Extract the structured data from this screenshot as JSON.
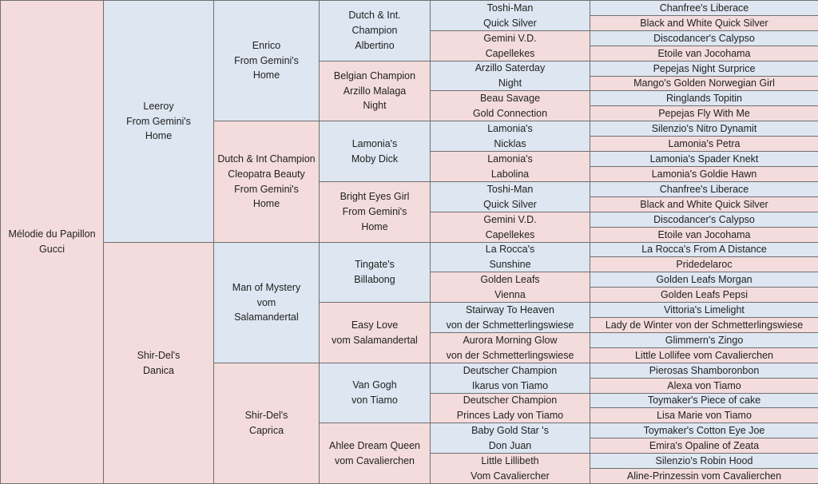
{
  "subject": {
    "lines": [
      "Mélodie du Papillon",
      "Gucci"
    ]
  },
  "generations": [
    [
      {
        "lines": [
          "Leeroy",
          "From Gemini's",
          "Home"
        ]
      },
      {
        "lines": [
          "Shir-Del's",
          "Danica"
        ]
      }
    ],
    [
      {
        "lines": [
          "Enrico",
          "From Gemini's",
          "Home"
        ]
      },
      {
        "lines": [
          "Dutch & Int Champion",
          "Cleopatra Beauty",
          "From Gemini's",
          "Home"
        ]
      },
      {
        "lines": [
          "Man of Mystery",
          "vom",
          "Salamandertal"
        ]
      },
      {
        "lines": [
          "Shir-Del's",
          "Caprica"
        ]
      }
    ],
    [
      {
        "lines": [
          "Dutch & Int.",
          "Champion",
          "Albertino"
        ]
      },
      {
        "lines": [
          "Belgian Champion",
          "Arzillo Malaga",
          "Night"
        ]
      },
      {
        "lines": [
          "Lamonia's",
          "Moby Dick"
        ]
      },
      {
        "lines": [
          "Bright Eyes Girl",
          "From Gemini's",
          "Home"
        ]
      },
      {
        "lines": [
          "Tingate's",
          "Billabong"
        ]
      },
      {
        "lines": [
          "Easy Love",
          "vom Salamandertal"
        ]
      },
      {
        "lines": [
          "Van Gogh",
          "von Tiamo"
        ]
      },
      {
        "lines": [
          "Ahlee Dream Queen",
          "vom Cavalierchen"
        ]
      }
    ],
    [
      {
        "lines": [
          "Toshi-Man",
          "Quick Silver"
        ]
      },
      {
        "lines": [
          "Gemini V.D.",
          "Capellekes"
        ]
      },
      {
        "lines": [
          "Arzillo Saterday",
          "Night"
        ]
      },
      {
        "lines": [
          "Beau Savage",
          "Gold Connection"
        ]
      },
      {
        "lines": [
          "Lamonia's",
          "Nicklas"
        ]
      },
      {
        "lines": [
          "Lamonia's",
          "Labolina"
        ]
      },
      {
        "lines": [
          "Toshi-Man",
          "Quick Silver"
        ]
      },
      {
        "lines": [
          "Gemini V.D.",
          "Capellekes"
        ]
      },
      {
        "lines": [
          "La Rocca's",
          "Sunshine"
        ]
      },
      {
        "lines": [
          "Golden Leafs",
          "Vienna"
        ]
      },
      {
        "lines": [
          "Stairway To Heaven",
          "von der Schmetterlingswiese"
        ]
      },
      {
        "lines": [
          "Aurora Morning Glow",
          "von der Schmetterlingswiese"
        ]
      },
      {
        "lines": [
          "Deutscher Champion",
          "Ikarus von Tiamo"
        ]
      },
      {
        "lines": [
          "Deutscher Champion",
          "Princes Lady von Tiamo"
        ]
      },
      {
        "lines": [
          "Baby Gold Star 's",
          "Don Juan"
        ]
      },
      {
        "lines": [
          "Little Lillibeth",
          "Vom Cavaliercher"
        ]
      }
    ],
    [
      {
        "lines": [
          "Chanfree's Liberace"
        ]
      },
      {
        "lines": [
          "Black and White Quick Silver"
        ]
      },
      {
        "lines": [
          "Discodancer's Calypso"
        ]
      },
      {
        "lines": [
          "Etoile van Jocohama"
        ]
      },
      {
        "lines": [
          "Pepejas Night Surprice"
        ]
      },
      {
        "lines": [
          "Mango's Golden Norwegian Girl"
        ]
      },
      {
        "lines": [
          "Ringlands Topitin"
        ]
      },
      {
        "lines": [
          "Pepejas Fly With Me"
        ]
      },
      {
        "lines": [
          "Silenzio's Nitro Dynamit"
        ]
      },
      {
        "lines": [
          "Lamonia's Petra"
        ]
      },
      {
        "lines": [
          "Lamonia's Spader Knekt"
        ]
      },
      {
        "lines": [
          "Lamonia's Goldie Hawn"
        ]
      },
      {
        "lines": [
          "Chanfree's Liberace"
        ]
      },
      {
        "lines": [
          "Black and White Quick Silver"
        ]
      },
      {
        "lines": [
          "Discodancer's Calypso"
        ]
      },
      {
        "lines": [
          "Etoile van Jocohama"
        ]
      },
      {
        "lines": [
          "La Rocca's From A Distance"
        ]
      },
      {
        "lines": [
          "Pridedelaroc"
        ]
      },
      {
        "lines": [
          "Golden Leafs Morgan"
        ]
      },
      {
        "lines": [
          "Golden Leafs Pepsi"
        ]
      },
      {
        "lines": [
          "Vittoria's Limelight"
        ]
      },
      {
        "lines": [
          "Lady de Winter von der Schmetterlingswiese"
        ]
      },
      {
        "lines": [
          "Glimmern's Zingo"
        ]
      },
      {
        "lines": [
          "Little Lollifee vom Cavalierchen"
        ]
      },
      {
        "lines": [
          "Pierosas Shamboronbon"
        ]
      },
      {
        "lines": [
          "Alexa von Tiamo"
        ]
      },
      {
        "lines": [
          "Toymaker's Piece of cake"
        ]
      },
      {
        "lines": [
          "Lisa Marie von Tiamo"
        ]
      },
      {
        "lines": [
          "Toymaker's Cotton Eye Joe"
        ]
      },
      {
        "lines": [
          "Emira's Opaline of Zeata"
        ]
      },
      {
        "lines": [
          "Silenzio's Robin Hood"
        ]
      },
      {
        "lines": [
          "Aline-Prinzessin vom Cavalierchen"
        ]
      }
    ]
  ],
  "colors": {
    "sire": "#dde6f1",
    "dam": "#f4dcdc",
    "border": "#6f6f6f",
    "text": "#222222"
  }
}
